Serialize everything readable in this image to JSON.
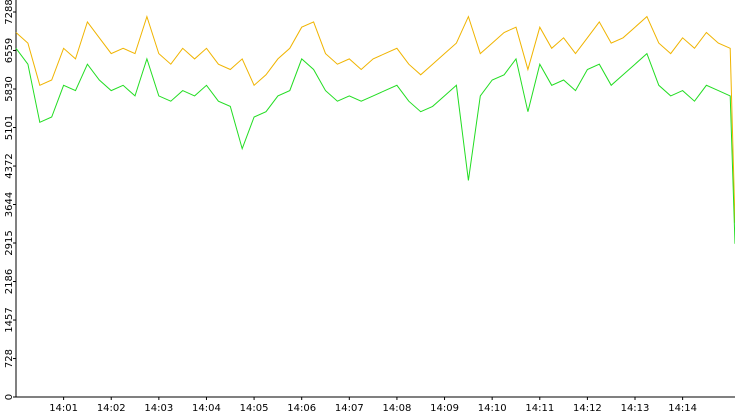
{
  "chart_data": {
    "type": "line",
    "x": [
      0,
      0.25,
      0.5,
      0.75,
      1,
      1.25,
      1.5,
      1.75,
      2,
      2.25,
      2.5,
      2.75,
      3,
      3.25,
      3.5,
      3.75,
      4,
      4.25,
      4.5,
      4.75,
      5,
      5.25,
      5.5,
      5.75,
      6,
      6.25,
      6.5,
      6.75,
      7,
      7.25,
      7.5,
      7.75,
      8,
      8.25,
      8.5,
      8.75,
      9,
      9.25,
      9.5,
      9.75,
      10,
      10.25,
      10.5,
      10.75,
      11,
      11.25,
      11.5,
      11.75,
      12,
      12.25,
      12.5,
      12.75,
      13,
      13.25,
      13.5,
      13.75,
      14,
      14.25,
      14.5,
      14.75,
      15,
      15.1
    ],
    "series": [
      {
        "color": "#f0b400",
        "values": [
          6900,
          6700,
          5900,
          6000,
          6600,
          6400,
          7100,
          6800,
          6500,
          6600,
          6500,
          7200,
          6500,
          6300,
          6600,
          6400,
          6600,
          6300,
          6200,
          6400,
          5900,
          6100,
          6400,
          6600,
          7000,
          7100,
          6500,
          6300,
          6400,
          6200,
          6400,
          6500,
          6600,
          6300,
          6100,
          6300,
          6500,
          6700,
          7200,
          6500,
          6700,
          6900,
          7000,
          6200,
          7000,
          6600,
          6800,
          6500,
          6800,
          7100,
          6700,
          6800,
          7000,
          7200,
          6700,
          6500,
          6800,
          6600,
          6900,
          6700,
          6600,
          3300
        ]
      },
      {
        "color": "#22dd22",
        "values": [
          6600,
          6300,
          5200,
          5300,
          5900,
          5800,
          6300,
          6000,
          5800,
          5900,
          5700,
          6400,
          5700,
          5600,
          5800,
          5700,
          5900,
          5600,
          5500,
          4700,
          5300,
          5400,
          5700,
          5800,
          6400,
          6200,
          5800,
          5600,
          5700,
          5600,
          5700,
          5800,
          5900,
          5600,
          5400,
          5500,
          5700,
          5900,
          4100,
          5700,
          6000,
          6100,
          6400,
          5400,
          6300,
          5900,
          6000,
          5800,
          6200,
          6300,
          5900,
          6100,
          6300,
          6500,
          5900,
          5700,
          5800,
          5600,
          5900,
          5800,
          5700,
          2900
        ]
      }
    ],
    "xlim": [
      0,
      15.1
    ],
    "xticks": [
      {
        "value": 1,
        "label": "14:01"
      },
      {
        "value": 2,
        "label": "14:02"
      },
      {
        "value": 3,
        "label": "14:03"
      },
      {
        "value": 4,
        "label": "14:04"
      },
      {
        "value": 5,
        "label": "14:05"
      },
      {
        "value": 6,
        "label": "14:06"
      },
      {
        "value": 7,
        "label": "14:07"
      },
      {
        "value": 8,
        "label": "14:08"
      },
      {
        "value": 9,
        "label": "14:09"
      },
      {
        "value": 10,
        "label": "14:10"
      },
      {
        "value": 11,
        "label": "14:11"
      },
      {
        "value": 12,
        "label": "14:12"
      },
      {
        "value": 13,
        "label": "14:13"
      },
      {
        "value": 14,
        "label": "14:14"
      }
    ],
    "ylim": [
      0,
      7515
    ],
    "yticks": [
      0,
      728,
      1457,
      2186,
      2915,
      3644,
      4372,
      5101,
      5830,
      6559,
      7288
    ]
  }
}
